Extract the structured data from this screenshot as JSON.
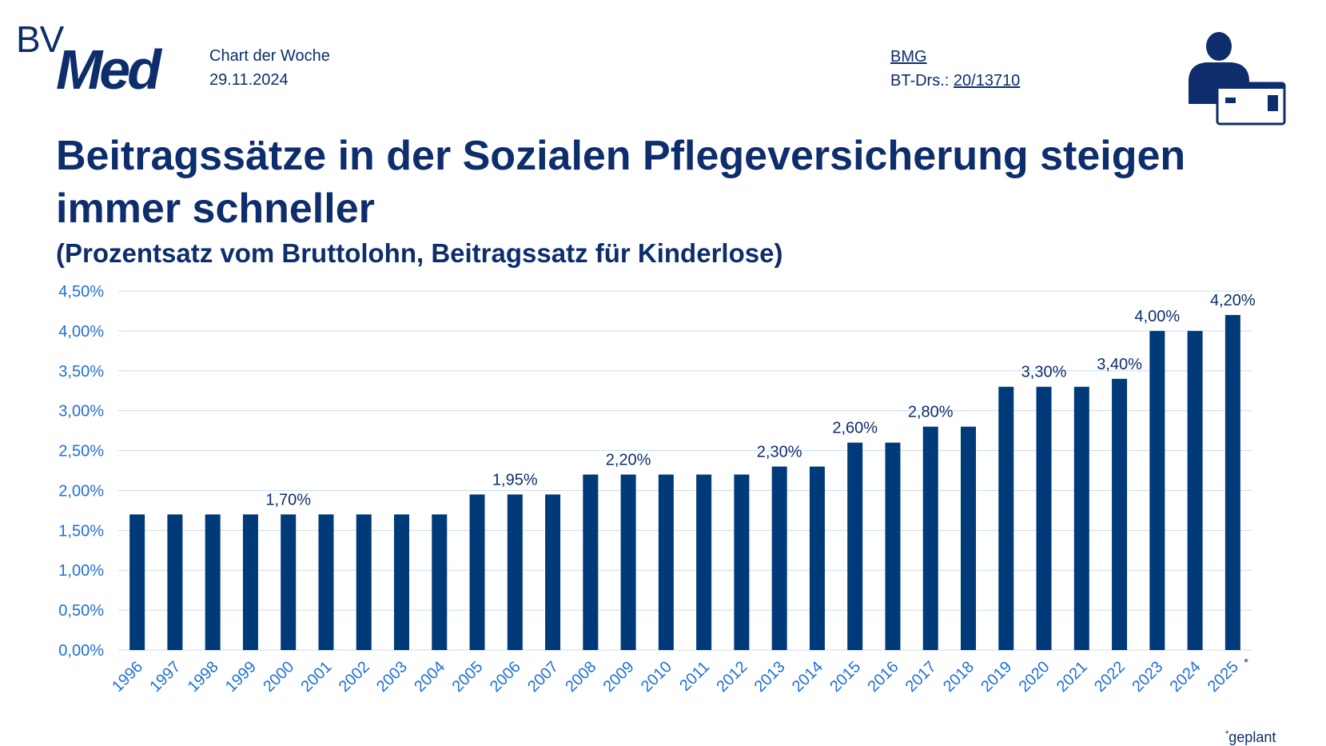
{
  "brand": {
    "logo_bv": "BV",
    "logo_med": "Med"
  },
  "header": {
    "label": "Chart der Woche",
    "date": "29.11.2024",
    "source_name": "BMG",
    "source_ref_prefix": "BT-Drs.: ",
    "source_ref": "20/13710"
  },
  "colors": {
    "bar": "#003a79",
    "grid": "#c9dcef",
    "axis_text": "#1f6fd6",
    "label": "#0d2d6c"
  },
  "footnote": {
    "marker": "*",
    "text": "geplant"
  },
  "chart_data": {
    "type": "bar",
    "title": "Beitragssätze in der Sozialen Pflegeversicherung steigen immer schneller",
    "subtitle": "(Prozentsatz vom Bruttolohn, Beitragssatz für Kinderlose)",
    "xlabel": "",
    "ylabel": "",
    "ylim": [
      0,
      4.5
    ],
    "yticks": [
      0,
      0.5,
      1.0,
      1.5,
      2.0,
      2.5,
      3.0,
      3.5,
      4.0,
      4.5
    ],
    "ytick_labels": [
      "0,00%",
      "0,50%",
      "1,00%",
      "1,50%",
      "2,00%",
      "2,50%",
      "3,00%",
      "3,50%",
      "4,00%",
      "4,50%"
    ],
    "grid": true,
    "categories": [
      "1996",
      "1997",
      "1998",
      "1999",
      "2000",
      "2001",
      "2002",
      "2003",
      "2004",
      "2005",
      "2006",
      "2007",
      "2008",
      "2009",
      "2010",
      "2011",
      "2012",
      "2013",
      "2014",
      "2015",
      "2016",
      "2017",
      "2018",
      "2019",
      "2020",
      "2021",
      "2022",
      "2023",
      "2024",
      "2025"
    ],
    "values": [
      1.7,
      1.7,
      1.7,
      1.7,
      1.7,
      1.7,
      1.7,
      1.7,
      1.7,
      1.95,
      1.95,
      1.95,
      2.2,
      2.2,
      2.2,
      2.2,
      2.2,
      2.3,
      2.3,
      2.6,
      2.6,
      2.8,
      2.8,
      3.3,
      3.3,
      3.3,
      3.4,
      4.0,
      4.0,
      4.2
    ],
    "data_labels": [
      {
        "category": "2000",
        "text": "1,70%"
      },
      {
        "category": "2006",
        "text": "1,95%"
      },
      {
        "category": "2009",
        "text": "2,20%"
      },
      {
        "category": "2013",
        "text": "2,30%"
      },
      {
        "category": "2015",
        "text": "2,60%"
      },
      {
        "category": "2017",
        "text": "2,80%"
      },
      {
        "category": "2020",
        "text": "3,30%"
      },
      {
        "category": "2022",
        "text": "3,40%"
      },
      {
        "category": "2023",
        "text": "4,00%"
      },
      {
        "category": "2025",
        "text": "4,20%"
      }
    ],
    "annotated_categories": [
      {
        "category": "2025",
        "marker": "*"
      }
    ]
  }
}
